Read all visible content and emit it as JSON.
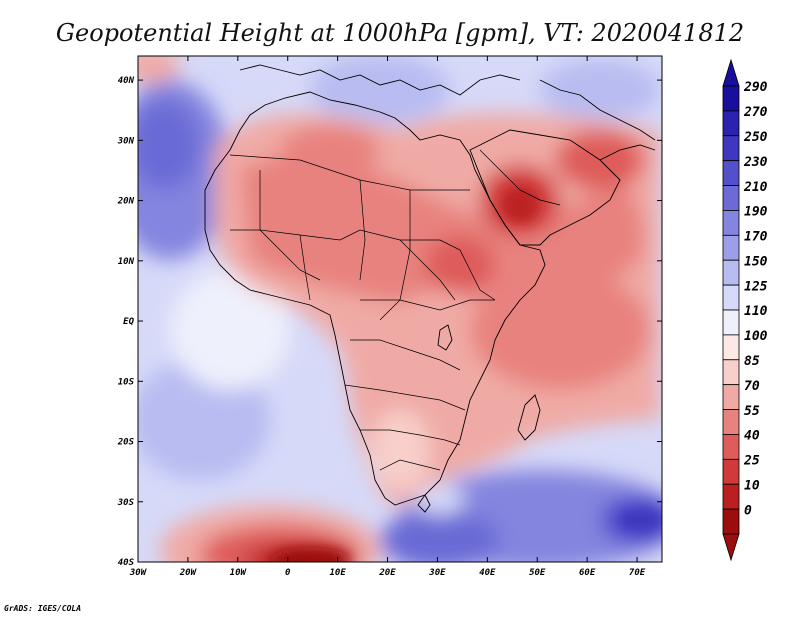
{
  "title": "Geopotential Height at 1000hPa [gpm], VT: 2020041812",
  "x_ticks": [
    "30W",
    "20W",
    "10W",
    "0",
    "10E",
    "20E",
    "30E",
    "40E",
    "50E",
    "60E",
    "70E"
  ],
  "y_ticks": [
    "40N",
    "30N",
    "20N",
    "10N",
    "EQ",
    "10S",
    "20S",
    "30S",
    "40S"
  ],
  "colorbar": {
    "labels": [
      "290",
      "270",
      "250",
      "230",
      "210",
      "190",
      "170",
      "150",
      "125",
      "110",
      "100",
      "85",
      "70",
      "55",
      "40",
      "25",
      "10",
      "0"
    ],
    "colors": [
      "#1a0f9c",
      "#2b23b0",
      "#3d38bf",
      "#5350cc",
      "#6b6ad6",
      "#8485df",
      "#9c9fe8",
      "#b8bcf1",
      "#d6d9f8",
      "#eef0fc",
      "#fde8e6",
      "#f8cfcb",
      "#f0aaa5",
      "#e8827e",
      "#de5c5a",
      "#d13a3a",
      "#bb2020",
      "#9c0e0e"
    ],
    "top_arrow_color": "#1a0f9c",
    "bottom_arrow_color": "#9c0e0e"
  },
  "credit": "GrADS: IGES/COLA"
}
